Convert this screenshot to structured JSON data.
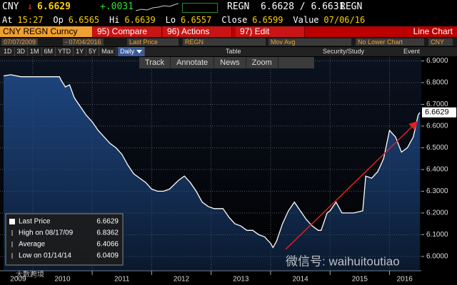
{
  "header": {
    "ticker": "CNY",
    "direction": "↓",
    "last": "6.6629",
    "change": "+.0031",
    "source": "REGN",
    "bid_ask": "6.6628 / 6.6631",
    "source2": "REGN"
  },
  "quote_fields": [
    {
      "label": "At",
      "value": "15:27"
    },
    {
      "label": "Op",
      "value": "6.6565"
    },
    {
      "label": "Hi",
      "value": "6.6639"
    },
    {
      "label": "Lo",
      "value": "6.6557"
    },
    {
      "label": "Close",
      "value": "6.6599"
    },
    {
      "label": "Value",
      "value": "07/06/16"
    }
  ],
  "security": "CNY REGN Curncy",
  "menu": [
    "95) Compare",
    "96) Actions",
    "97) Edit"
  ],
  "chart_kind": "Line Chart",
  "settings": {
    "start_date": "07/07/2009",
    "end_date": "- 07/04/2016",
    "field": "Last Price",
    "source": "REGN",
    "study": "Mov Avg",
    "lower_chart": "No Lower Chart",
    "currency": "CNY"
  },
  "periods": [
    "1D",
    "3D",
    "1M",
    "6M",
    "YTD",
    "1Y",
    "5Y",
    "Max"
  ],
  "frequency": "Daily",
  "tools": [
    "Table",
    "Security/Study",
    "Event"
  ],
  "chart_tools": [
    "Track",
    "Annotate",
    "News",
    "Zoom"
  ],
  "chart_data": {
    "type": "line",
    "x": [
      2009.51,
      2009.63,
      2009.8,
      2010.0,
      2010.2,
      2010.45,
      2010.48,
      2010.55,
      2010.62,
      2010.7,
      2010.8,
      2010.9,
      2011.0,
      2011.1,
      2011.2,
      2011.3,
      2011.4,
      2011.5,
      2011.6,
      2011.7,
      2011.8,
      2011.9,
      2012.0,
      2012.1,
      2012.2,
      2012.3,
      2012.45,
      2012.55,
      2012.65,
      2012.75,
      2012.85,
      2012.95,
      2013.05,
      2013.2,
      2013.3,
      2013.4,
      2013.5,
      2013.6,
      2013.7,
      2013.8,
      2013.9,
      2014.0,
      2014.04,
      2014.1,
      2014.2,
      2014.3,
      2014.4,
      2014.5,
      2014.6,
      2014.7,
      2014.8,
      2014.85,
      2014.95,
      2015.0,
      2015.1,
      2015.2,
      2015.3,
      2015.4,
      2015.55,
      2015.6,
      2015.7,
      2015.8,
      2015.9,
      2016.0,
      2016.1,
      2016.2,
      2016.3,
      2016.4,
      2016.48,
      2016.51
    ],
    "series": [
      {
        "name": "Last Price",
        "color": "#ffffff",
        "values": [
          6.831,
          6.8362,
          6.827,
          6.827,
          6.827,
          6.827,
          6.81,
          6.78,
          6.79,
          6.73,
          6.69,
          6.65,
          6.62,
          6.58,
          6.55,
          6.52,
          6.5,
          6.47,
          6.42,
          6.38,
          6.36,
          6.34,
          6.31,
          6.3,
          6.3,
          6.31,
          6.35,
          6.37,
          6.34,
          6.3,
          6.25,
          6.23,
          6.22,
          6.22,
          6.18,
          6.15,
          6.14,
          6.12,
          6.12,
          6.1,
          6.09,
          6.06,
          6.0409,
          6.07,
          6.15,
          6.21,
          6.25,
          6.21,
          6.17,
          6.14,
          6.12,
          6.12,
          6.2,
          6.21,
          6.25,
          6.2,
          6.2,
          6.2,
          6.21,
          6.37,
          6.36,
          6.39,
          6.45,
          6.58,
          6.55,
          6.48,
          6.5,
          6.55,
          6.65,
          6.6629
        ]
      }
    ],
    "fill_color": "#1d4680",
    "xlim": [
      2009.51,
      2016.51
    ],
    "xticks": [
      2009,
      2010,
      2011,
      2012,
      2013,
      2014,
      2015,
      2016
    ],
    "ylim": [
      5.934,
      6.918
    ],
    "yticks": [
      {
        "value": 6.0,
        "label": "6.0000"
      },
      {
        "value": 6.1,
        "label": "6.1000"
      },
      {
        "value": 6.2,
        "label": "6.2000"
      },
      {
        "value": 6.3,
        "label": "6.3000"
      },
      {
        "value": 6.4,
        "label": "6.4000"
      },
      {
        "value": 6.5,
        "label": "6.5000"
      },
      {
        "value": 6.6,
        "label": "6.6000"
      },
      {
        "value": 6.7,
        "label": "6.7000"
      },
      {
        "value": 6.8,
        "label": "6.8000"
      },
      {
        "value": 6.9,
        "label": "6.9000"
      }
    ],
    "grid": true,
    "legend_rows": [
      {
        "label": "High on 08/17/09",
        "value": 6.8362
      },
      {
        "label": "Average",
        "value": 6.4066
      },
      {
        "label": "Low on 01/14/14",
        "value": 6.0409
      }
    ]
  },
  "watermarks": [
    "微信号: waihuitoutiao",
    "大數跨境"
  ]
}
